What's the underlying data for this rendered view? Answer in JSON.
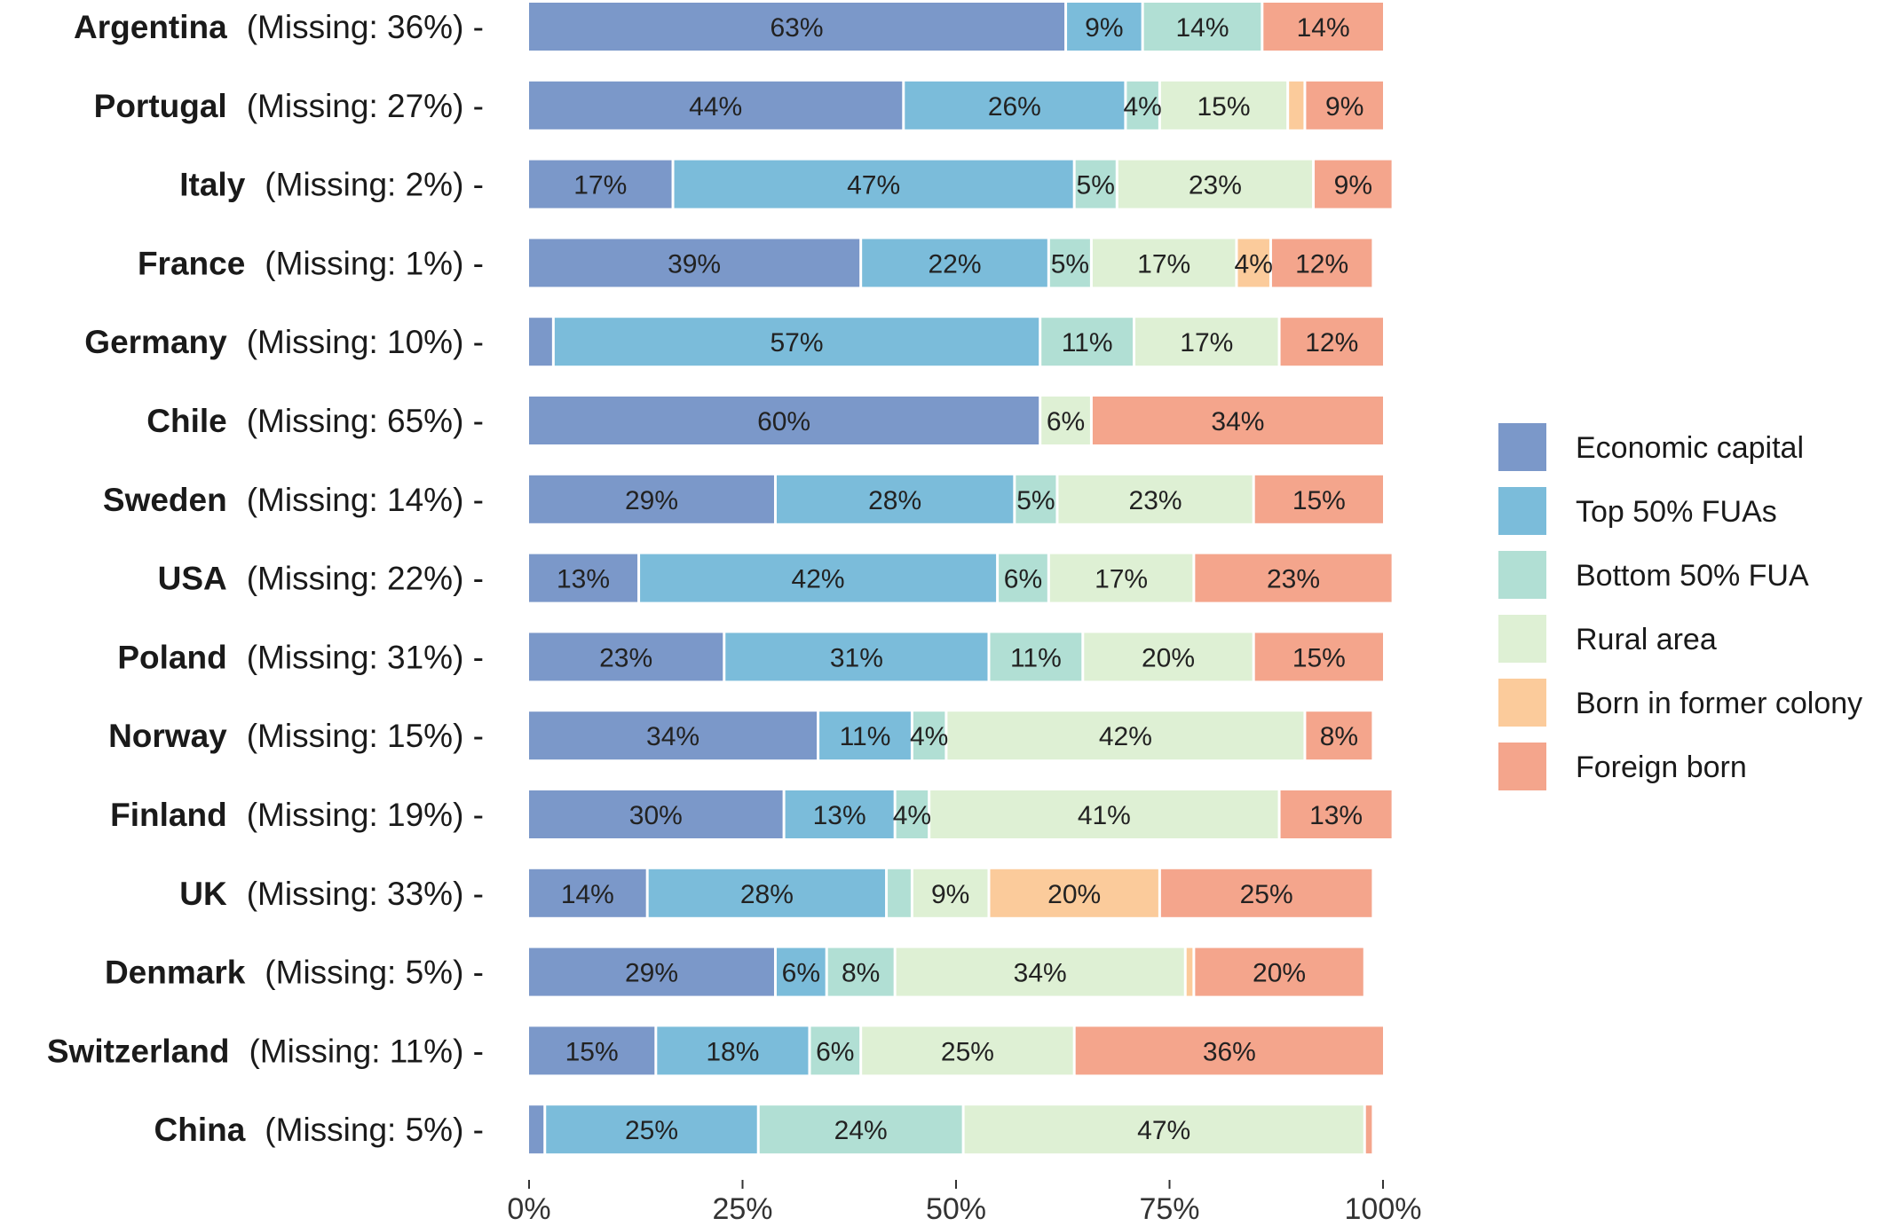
{
  "chart_data": {
    "type": "bar",
    "orientation": "horizontal",
    "stacked": true,
    "title": "",
    "xlabel": "",
    "ylabel": "",
    "xlim": [
      0,
      100
    ],
    "x_ticks": [
      "0%",
      "25%",
      "50%",
      "75%",
      "100%"
    ],
    "grid": false,
    "legend_position": "right",
    "colors": {
      "Economic capital": "#7b98c9",
      "Top 50% FUAs": "#7bbcda",
      "Bottom 50% FUA": "#b1dfd4",
      "Rural area": "#def0d4",
      "Born in former colony": "#fbcb9b",
      "Foreign born": "#f4a58c"
    },
    "series_names": [
      "Economic capital",
      "Top 50% FUAs",
      "Bottom 50% FUA",
      "Rural area",
      "Born in former colony",
      "Foreign born"
    ],
    "rows": [
      {
        "name": "Argentina",
        "missing": "(Missing: 36%) -",
        "values": [
          63,
          9,
          14,
          0,
          0,
          14
        ],
        "labels": [
          "63%",
          "9%",
          "14%",
          "",
          "",
          "14%"
        ]
      },
      {
        "name": "Portugal",
        "missing": "(Missing: 27%) -",
        "values": [
          44,
          26,
          4,
          15,
          2,
          9
        ],
        "labels": [
          "44%",
          "26%",
          "4%",
          "15%",
          "",
          "9%"
        ]
      },
      {
        "name": "Italy",
        "missing": "(Missing: 2%) -",
        "values": [
          17,
          47,
          5,
          23,
          0,
          9
        ],
        "labels": [
          "17%",
          "47%",
          "5%",
          "23%",
          "",
          "9%"
        ]
      },
      {
        "name": "France",
        "missing": "(Missing: 1%) -",
        "values": [
          39,
          22,
          5,
          17,
          4,
          12
        ],
        "labels": [
          "39%",
          "22%",
          "5%",
          "17%",
          "4%",
          "12%"
        ]
      },
      {
        "name": "Germany",
        "missing": "(Missing: 10%) -",
        "values": [
          3,
          57,
          11,
          17,
          0,
          12
        ],
        "labels": [
          "",
          "57%",
          "11%",
          "17%",
          "",
          "12%"
        ]
      },
      {
        "name": "Chile",
        "missing": "(Missing: 65%) -",
        "values": [
          60,
          0,
          0,
          6,
          0,
          34
        ],
        "labels": [
          "60%",
          "",
          "",
          "6%",
          "",
          "34%"
        ]
      },
      {
        "name": "Sweden",
        "missing": "(Missing: 14%) -",
        "values": [
          29,
          28,
          5,
          23,
          0,
          15
        ],
        "labels": [
          "29%",
          "28%",
          "5%",
          "23%",
          "",
          "15%"
        ]
      },
      {
        "name": "USA",
        "missing": "(Missing: 22%) -",
        "values": [
          13,
          42,
          6,
          17,
          0,
          23
        ],
        "labels": [
          "13%",
          "42%",
          "6%",
          "17%",
          "",
          "23%"
        ]
      },
      {
        "name": "Poland",
        "missing": "(Missing: 31%) -",
        "values": [
          23,
          31,
          11,
          20,
          0,
          15
        ],
        "labels": [
          "23%",
          "31%",
          "11%",
          "20%",
          "",
          "15%"
        ]
      },
      {
        "name": "Norway",
        "missing": "(Missing: 15%) -",
        "values": [
          34,
          11,
          4,
          42,
          0,
          8
        ],
        "labels": [
          "34%",
          "11%",
          "4%",
          "42%",
          "",
          "8%"
        ]
      },
      {
        "name": "Finland",
        "missing": "(Missing: 19%) -",
        "values": [
          30,
          13,
          4,
          41,
          0,
          13
        ],
        "labels": [
          "30%",
          "13%",
          "4%",
          "41%",
          "",
          "13%"
        ]
      },
      {
        "name": "UK",
        "missing": "(Missing: 33%) -",
        "values": [
          14,
          28,
          3,
          9,
          20,
          25
        ],
        "labels": [
          "14%",
          "28%",
          "",
          "9%",
          "20%",
          "25%"
        ]
      },
      {
        "name": "Denmark",
        "missing": "(Missing: 5%) -",
        "values": [
          29,
          6,
          8,
          34,
          1,
          20
        ],
        "labels": [
          "29%",
          "6%",
          "8%",
          "34%",
          "",
          "20%"
        ]
      },
      {
        "name": "Switzerland",
        "missing": "(Missing: 11%) -",
        "values": [
          15,
          18,
          6,
          25,
          0,
          36
        ],
        "labels": [
          "15%",
          "18%",
          "6%",
          "25%",
          "",
          "36%"
        ]
      },
      {
        "name": "China",
        "missing": "(Missing: 5%) -",
        "values": [
          2,
          25,
          24,
          47,
          0,
          1
        ],
        "labels": [
          "",
          "25%",
          "24%",
          "47%",
          "",
          ""
        ]
      }
    ]
  }
}
